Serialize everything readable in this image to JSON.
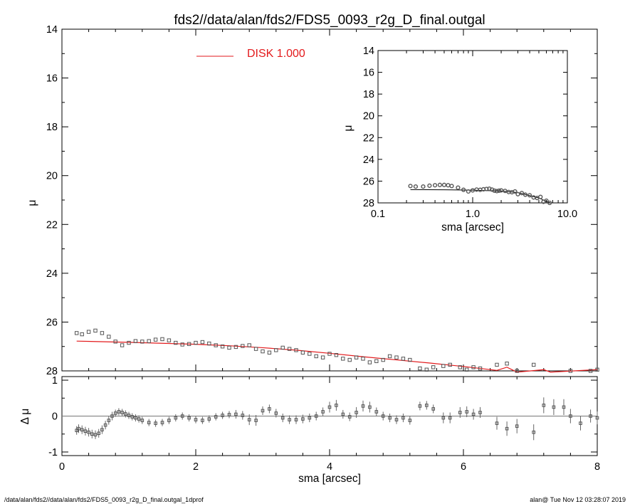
{
  "footer": {
    "left": "/data/alan/fds2//data/alan/fds2/FDS5_0093_r2g_D_final.outgal_1dprof",
    "right": "alan@  Tue Nov 12 03:28:07 2019"
  },
  "chart_data": [
    {
      "id": "main",
      "type": "scatter",
      "title": "fds2//data/alan/fds2/FDS5_0093_r2g_D_final.outgal",
      "xlabel": "sma [arcsec]",
      "ylabel": "μ",
      "xlim": [
        0,
        8
      ],
      "ylim": [
        28,
        14
      ],
      "xticks": [
        0,
        2,
        4,
        6,
        8
      ],
      "yticks": [
        14,
        16,
        18,
        20,
        22,
        24,
        26,
        28
      ],
      "legend": {
        "label": "DISK  1.000",
        "color": "#e31a1c",
        "placement": "top-left"
      },
      "series": [
        {
          "name": "DISK  1.000",
          "kind": "model-line",
          "color": "#e31a1c",
          "x": [
            0.22,
            1.0,
            1.5,
            2.0,
            2.5,
            3.0,
            3.5,
            4.0,
            4.5,
            5.0,
            5.5,
            6.0,
            6.5,
            6.65,
            6.8,
            7.2,
            7.3,
            8.0
          ],
          "y": [
            26.78,
            26.83,
            26.87,
            26.91,
            26.97,
            27.05,
            27.15,
            27.28,
            27.42,
            27.55,
            27.68,
            27.82,
            27.98,
            27.85,
            28.05,
            27.95,
            28.05,
            27.95
          ]
        },
        {
          "name": "",
          "kind": "data-squares",
          "color": "#555555",
          "x": [
            0.22,
            0.3,
            0.4,
            0.5,
            0.6,
            0.7,
            0.8,
            0.9,
            1.0,
            1.1,
            1.2,
            1.3,
            1.4,
            1.5,
            1.6,
            1.7,
            1.8,
            1.9,
            2.0,
            2.1,
            2.2,
            2.3,
            2.4,
            2.5,
            2.6,
            2.7,
            2.8,
            2.9,
            3.0,
            3.1,
            3.2,
            3.3,
            3.4,
            3.5,
            3.6,
            3.7,
            3.8,
            3.9,
            4.0,
            4.1,
            4.2,
            4.3,
            4.4,
            4.5,
            4.6,
            4.7,
            4.8,
            4.9,
            5.0,
            5.1,
            5.2,
            5.35,
            5.45,
            5.55,
            5.7,
            5.8,
            5.95,
            6.05,
            6.15,
            6.25,
            6.5,
            6.65,
            6.8,
            7.05,
            7.6,
            7.9,
            8.0
          ],
          "y": [
            26.45,
            26.5,
            26.4,
            26.35,
            26.45,
            26.6,
            26.8,
            26.95,
            26.85,
            26.78,
            26.8,
            26.78,
            26.72,
            26.7,
            26.75,
            26.85,
            26.92,
            26.9,
            26.85,
            26.82,
            26.88,
            26.95,
            27.0,
            27.05,
            27.02,
            26.98,
            26.95,
            27.1,
            27.2,
            27.25,
            27.15,
            27.05,
            27.1,
            27.15,
            27.25,
            27.3,
            27.4,
            27.45,
            27.3,
            27.35,
            27.5,
            27.55,
            27.45,
            27.5,
            27.65,
            27.6,
            27.55,
            27.4,
            27.45,
            27.5,
            27.55,
            27.9,
            27.95,
            27.85,
            27.8,
            27.75,
            27.85,
            27.95,
            27.85,
            27.9,
            27.75,
            27.7,
            28.0,
            27.75,
            28.0,
            28.0,
            27.95
          ]
        }
      ]
    },
    {
      "id": "inset",
      "type": "scatter",
      "title": "",
      "xlabel": "sma [arcsec]",
      "ylabel": "μ",
      "xscale": "log",
      "xlim": [
        0.1,
        10.0
      ],
      "ylim": [
        28,
        14
      ],
      "xticks": [
        0.1,
        1.0,
        10.0
      ],
      "xticklabels": [
        "0.1",
        "1.0",
        "10.0"
      ],
      "yticks": [
        14,
        16,
        18,
        20,
        22,
        24,
        26,
        28
      ],
      "series": [
        {
          "name": "",
          "kind": "model-line",
          "color": "#000000",
          "x": [
            0.22,
            0.5,
            1.0,
            2.0,
            3.0,
            5.0,
            6.5
          ],
          "y": [
            26.78,
            26.8,
            26.83,
            26.91,
            27.05,
            27.55,
            27.98
          ]
        },
        {
          "name": "",
          "kind": "data-circles",
          "color": "#555555",
          "x": [
            0.22,
            0.25,
            0.3,
            0.35,
            0.4,
            0.45,
            0.5,
            0.55,
            0.6,
            0.7,
            0.8,
            0.9,
            1.0,
            1.1,
            1.2,
            1.3,
            1.4,
            1.5,
            1.6,
            1.7,
            1.8,
            1.9,
            2.0,
            2.2,
            2.4,
            2.6,
            2.8,
            3.0,
            3.3,
            3.6,
            4.0,
            4.4,
            4.8,
            5.2,
            5.6,
            6.0,
            6.5
          ],
          "y": [
            26.45,
            26.5,
            26.5,
            26.42,
            26.38,
            26.35,
            26.35,
            26.38,
            26.45,
            26.6,
            26.8,
            26.95,
            26.85,
            26.78,
            26.8,
            26.75,
            26.72,
            26.7,
            26.78,
            26.88,
            26.92,
            26.88,
            26.85,
            26.9,
            27.0,
            27.02,
            26.95,
            27.2,
            27.1,
            27.25,
            27.3,
            27.5,
            27.55,
            27.45,
            27.9,
            27.8,
            28.0
          ]
        }
      ]
    },
    {
      "id": "residual",
      "type": "scatter",
      "title": "",
      "xlabel": "sma [arcsec]",
      "ylabel": "Δ μ",
      "xlim": [
        0,
        8
      ],
      "ylim": [
        -1.1,
        1.1
      ],
      "xticks": [
        0,
        2,
        4,
        6,
        8
      ],
      "yticks": [
        -1,
        0,
        1
      ],
      "series": [
        {
          "name": "",
          "kind": "residual-with-errors",
          "color": "#555555",
          "x": [
            0.22,
            0.25,
            0.3,
            0.35,
            0.4,
            0.45,
            0.5,
            0.55,
            0.6,
            0.65,
            0.7,
            0.75,
            0.8,
            0.85,
            0.9,
            0.95,
            1.0,
            1.05,
            1.1,
            1.15,
            1.2,
            1.3,
            1.4,
            1.5,
            1.6,
            1.7,
            1.8,
            1.9,
            2.0,
            2.1,
            2.2,
            2.3,
            2.4,
            2.5,
            2.6,
            2.7,
            2.8,
            2.9,
            3.0,
            3.1,
            3.2,
            3.3,
            3.4,
            3.5,
            3.6,
            3.7,
            3.8,
            3.9,
            4.0,
            4.1,
            4.2,
            4.3,
            4.4,
            4.5,
            4.6,
            4.7,
            4.8,
            4.9,
            5.0,
            5.1,
            5.2,
            5.35,
            5.45,
            5.55,
            5.7,
            5.8,
            5.95,
            6.05,
            6.15,
            6.25,
            6.5,
            6.65,
            6.8,
            7.05,
            7.2,
            7.35,
            7.5,
            7.6,
            7.75,
            7.9,
            8.0
          ],
          "y": [
            -0.4,
            -0.35,
            -0.38,
            -0.42,
            -0.45,
            -0.5,
            -0.52,
            -0.48,
            -0.38,
            -0.25,
            -0.12,
            0.0,
            0.08,
            0.12,
            0.1,
            0.06,
            0.02,
            -0.02,
            -0.05,
            -0.08,
            -0.12,
            -0.18,
            -0.2,
            -0.18,
            -0.12,
            -0.05,
            0.0,
            -0.05,
            -0.1,
            -0.12,
            -0.08,
            -0.02,
            0.02,
            0.04,
            0.05,
            0.02,
            -0.1,
            -0.12,
            0.15,
            0.2,
            0.08,
            -0.05,
            -0.1,
            -0.1,
            -0.08,
            -0.05,
            0.0,
            0.12,
            0.25,
            0.3,
            0.05,
            -0.02,
            0.1,
            0.28,
            0.25,
            0.12,
            0.0,
            -0.05,
            -0.1,
            -0.05,
            -0.12,
            0.28,
            0.3,
            0.2,
            -0.05,
            -0.05,
            0.1,
            0.12,
            0.05,
            0.1,
            -0.2,
            -0.35,
            -0.28,
            -0.45,
            0.3,
            0.25,
            0.25,
            0.0,
            -0.2,
            0.0,
            -0.05
          ],
          "err": [
            0.12,
            0.12,
            0.12,
            0.12,
            0.12,
            0.12,
            0.12,
            0.12,
            0.12,
            0.12,
            0.12,
            0.12,
            0.1,
            0.1,
            0.1,
            0.1,
            0.1,
            0.1,
            0.1,
            0.1,
            0.1,
            0.1,
            0.1,
            0.1,
            0.1,
            0.1,
            0.1,
            0.1,
            0.1,
            0.1,
            0.1,
            0.1,
            0.1,
            0.1,
            0.12,
            0.12,
            0.15,
            0.15,
            0.12,
            0.12,
            0.12,
            0.12,
            0.12,
            0.12,
            0.12,
            0.12,
            0.12,
            0.12,
            0.15,
            0.15,
            0.12,
            0.12,
            0.15,
            0.15,
            0.15,
            0.12,
            0.12,
            0.12,
            0.12,
            0.12,
            0.12,
            0.12,
            0.12,
            0.12,
            0.15,
            0.15,
            0.15,
            0.15,
            0.15,
            0.15,
            0.18,
            0.2,
            0.2,
            0.22,
            0.22,
            0.22,
            0.22,
            0.2,
            0.2,
            0.18,
            0.18
          ]
        }
      ]
    }
  ]
}
